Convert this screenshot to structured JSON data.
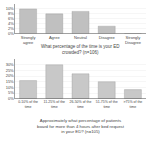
{
  "chart_data": [
    {
      "type": "bar",
      "categories": [
        "Strongly\nagree",
        "Agree",
        "Neutral",
        "Disagree",
        "Strongly\nDisagree"
      ],
      "values": [
        10,
        8,
        9,
        3,
        0
      ],
      "color": "#c0c0c0",
      "ylim": [
        0,
        12
      ],
      "yticks": [
        {
          "value": 0,
          "label": "0%"
        },
        {
          "value": 2,
          "label": "2%"
        },
        {
          "value": 4,
          "label": "4%"
        },
        {
          "value": 6,
          "label": "6%"
        },
        {
          "value": 8,
          "label": "8%"
        },
        {
          "value": 10,
          "label": "10%"
        }
      ],
      "grid": true
    },
    {
      "type": "bar",
      "title": "What percentage of the time is your ED\ncrowded? (n=106)",
      "categories": [
        "0-10% of the\ntime",
        "11-25% of the\ntime",
        "26-50% of the\ntime",
        "51-75% of the\ntime",
        ">75% of the\ntime"
      ],
      "values": [
        16,
        30,
        22,
        15,
        8
      ],
      "color": "#c8c8c8",
      "ylim": [
        0,
        35
      ],
      "yticks": [
        {
          "value": 0,
          "label": "0%"
        },
        {
          "value": 5,
          "label": "5%"
        },
        {
          "value": 10,
          "label": "10%"
        },
        {
          "value": 15,
          "label": "15%"
        },
        {
          "value": 20,
          "label": "20%"
        },
        {
          "value": 25,
          "label": "25%"
        },
        {
          "value": 30,
          "label": "30%"
        }
      ],
      "grid": true
    },
    {
      "type": "text",
      "title": "Approximately what percentage of patients\nboard for more than 4 hours after bed request\nin your ED? (n=105)"
    }
  ]
}
